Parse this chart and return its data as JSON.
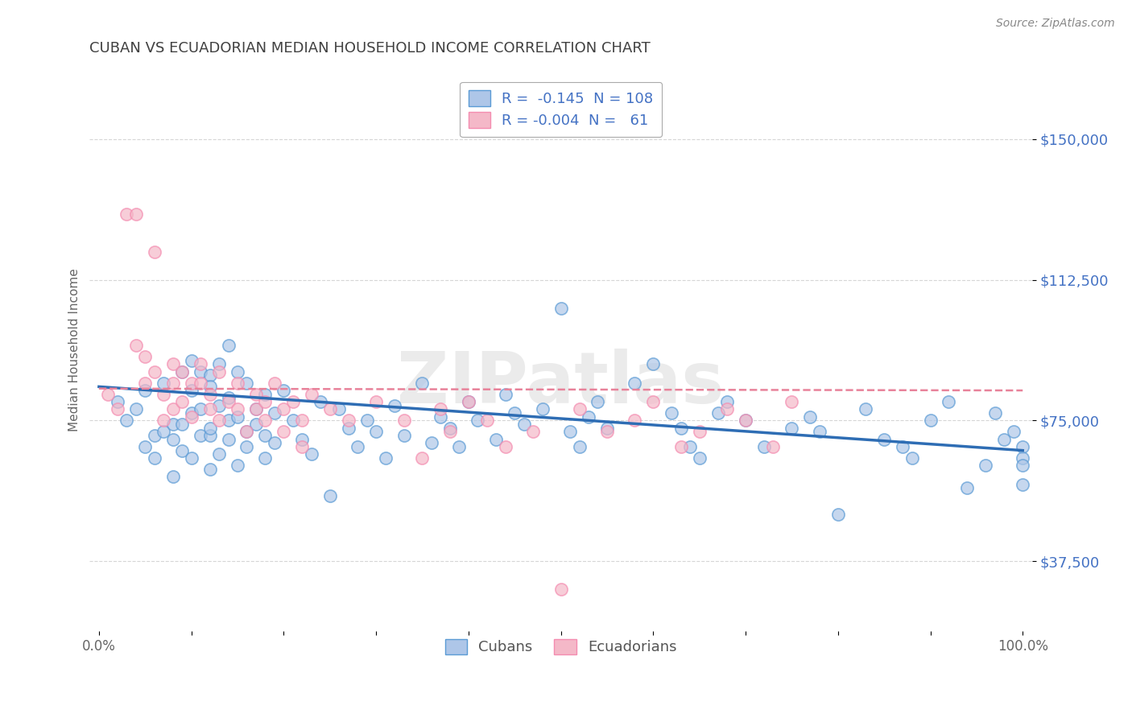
{
  "title": "CUBAN VS ECUADORIAN MEDIAN HOUSEHOLD INCOME CORRELATION CHART",
  "source": "Source: ZipAtlas.com",
  "ylabel": "Median Household Income",
  "xlim": [
    -0.01,
    1.01
  ],
  "ylim": [
    18750,
    168750
  ],
  "yticks": [
    37500,
    75000,
    112500,
    150000
  ],
  "ytick_labels": [
    "$37,500",
    "$75,000",
    "$112,500",
    "$150,000"
  ],
  "xticks": [
    0.0,
    0.1,
    0.2,
    0.3,
    0.4,
    0.5,
    0.6,
    0.7,
    0.8,
    0.9,
    1.0
  ],
  "xtick_labels": [
    "0.0%",
    "",
    "",
    "",
    "",
    "",
    "",
    "",
    "",
    "",
    "100.0%"
  ],
  "background_color": "#ffffff",
  "grid_color": "#cccccc",
  "title_color": "#404040",
  "ytick_color": "#4472c4",
  "xtick_color": "#666666",
  "legend_label1": "Cubans",
  "legend_label2": "Ecuadorians",
  "cuban_color": "#aec6e8",
  "ecuadorian_color": "#f4b8c8",
  "cuban_edge_color": "#5b9bd5",
  "ecuadorian_edge_color": "#f48cb0",
  "cuban_line_color": "#2e6db4",
  "ecuadorian_line_color": "#e8829a",
  "watermark_color": "#ebebeb",
  "cuban_scatter_x": [
    0.02,
    0.03,
    0.04,
    0.05,
    0.05,
    0.06,
    0.06,
    0.07,
    0.07,
    0.08,
    0.08,
    0.08,
    0.09,
    0.09,
    0.09,
    0.1,
    0.1,
    0.1,
    0.1,
    0.11,
    0.11,
    0.11,
    0.12,
    0.12,
    0.12,
    0.12,
    0.12,
    0.13,
    0.13,
    0.13,
    0.14,
    0.14,
    0.14,
    0.14,
    0.15,
    0.15,
    0.15,
    0.16,
    0.16,
    0.16,
    0.17,
    0.17,
    0.18,
    0.18,
    0.18,
    0.19,
    0.19,
    0.2,
    0.21,
    0.22,
    0.23,
    0.24,
    0.25,
    0.26,
    0.27,
    0.28,
    0.29,
    0.3,
    0.31,
    0.32,
    0.33,
    0.35,
    0.36,
    0.37,
    0.38,
    0.39,
    0.4,
    0.41,
    0.43,
    0.44,
    0.45,
    0.46,
    0.48,
    0.5,
    0.51,
    0.52,
    0.53,
    0.54,
    0.55,
    0.58,
    0.6,
    0.62,
    0.63,
    0.64,
    0.65,
    0.67,
    0.68,
    0.7,
    0.72,
    0.75,
    0.77,
    0.78,
    0.8,
    0.83,
    0.85,
    0.87,
    0.88,
    0.9,
    0.92,
    0.94,
    0.96,
    0.97,
    0.98,
    0.99,
    1.0,
    1.0,
    1.0,
    1.0
  ],
  "cuban_scatter_y": [
    80000,
    75000,
    78000,
    83000,
    68000,
    71000,
    65000,
    72000,
    85000,
    70000,
    74000,
    60000,
    88000,
    74000,
    67000,
    77000,
    83000,
    65000,
    91000,
    88000,
    71000,
    78000,
    87000,
    84000,
    71000,
    62000,
    73000,
    79000,
    66000,
    90000,
    95000,
    75000,
    81000,
    70000,
    76000,
    63000,
    88000,
    72000,
    85000,
    68000,
    78000,
    74000,
    65000,
    82000,
    71000,
    77000,
    69000,
    83000,
    75000,
    70000,
    66000,
    80000,
    55000,
    78000,
    73000,
    68000,
    75000,
    72000,
    65000,
    79000,
    71000,
    85000,
    69000,
    76000,
    73000,
    68000,
    80000,
    75000,
    70000,
    82000,
    77000,
    74000,
    78000,
    105000,
    72000,
    68000,
    76000,
    80000,
    73000,
    85000,
    90000,
    77000,
    73000,
    68000,
    65000,
    77000,
    80000,
    75000,
    68000,
    73000,
    76000,
    72000,
    50000,
    78000,
    70000,
    68000,
    65000,
    75000,
    80000,
    57000,
    63000,
    77000,
    70000,
    72000,
    68000,
    65000,
    63000,
    58000
  ],
  "ecuadorian_scatter_x": [
    0.01,
    0.02,
    0.03,
    0.04,
    0.04,
    0.05,
    0.05,
    0.06,
    0.06,
    0.07,
    0.07,
    0.08,
    0.08,
    0.08,
    0.09,
    0.09,
    0.1,
    0.1,
    0.11,
    0.11,
    0.12,
    0.12,
    0.13,
    0.13,
    0.14,
    0.15,
    0.15,
    0.16,
    0.17,
    0.17,
    0.18,
    0.18,
    0.19,
    0.2,
    0.2,
    0.21,
    0.22,
    0.22,
    0.23,
    0.25,
    0.27,
    0.3,
    0.33,
    0.35,
    0.37,
    0.38,
    0.4,
    0.42,
    0.44,
    0.47,
    0.5,
    0.52,
    0.55,
    0.58,
    0.6,
    0.63,
    0.65,
    0.68,
    0.7,
    0.73,
    0.75
  ],
  "ecuadorian_scatter_y": [
    82000,
    78000,
    130000,
    130000,
    95000,
    92000,
    85000,
    88000,
    120000,
    75000,
    82000,
    90000,
    78000,
    85000,
    88000,
    80000,
    76000,
    85000,
    85000,
    90000,
    78000,
    82000,
    88000,
    75000,
    80000,
    85000,
    78000,
    72000,
    82000,
    78000,
    75000,
    80000,
    85000,
    78000,
    72000,
    80000,
    75000,
    68000,
    82000,
    78000,
    75000,
    80000,
    75000,
    65000,
    78000,
    72000,
    80000,
    75000,
    68000,
    72000,
    30000,
    78000,
    72000,
    75000,
    80000,
    68000,
    72000,
    78000,
    75000,
    68000,
    80000
  ],
  "cuban_trend_x": [
    0.0,
    1.0
  ],
  "cuban_trend_y": [
    84000,
    67000
  ],
  "ecuadorian_trend_x": [
    0.0,
    1.0
  ],
  "ecuadorian_trend_y": [
    83500,
    83000
  ]
}
